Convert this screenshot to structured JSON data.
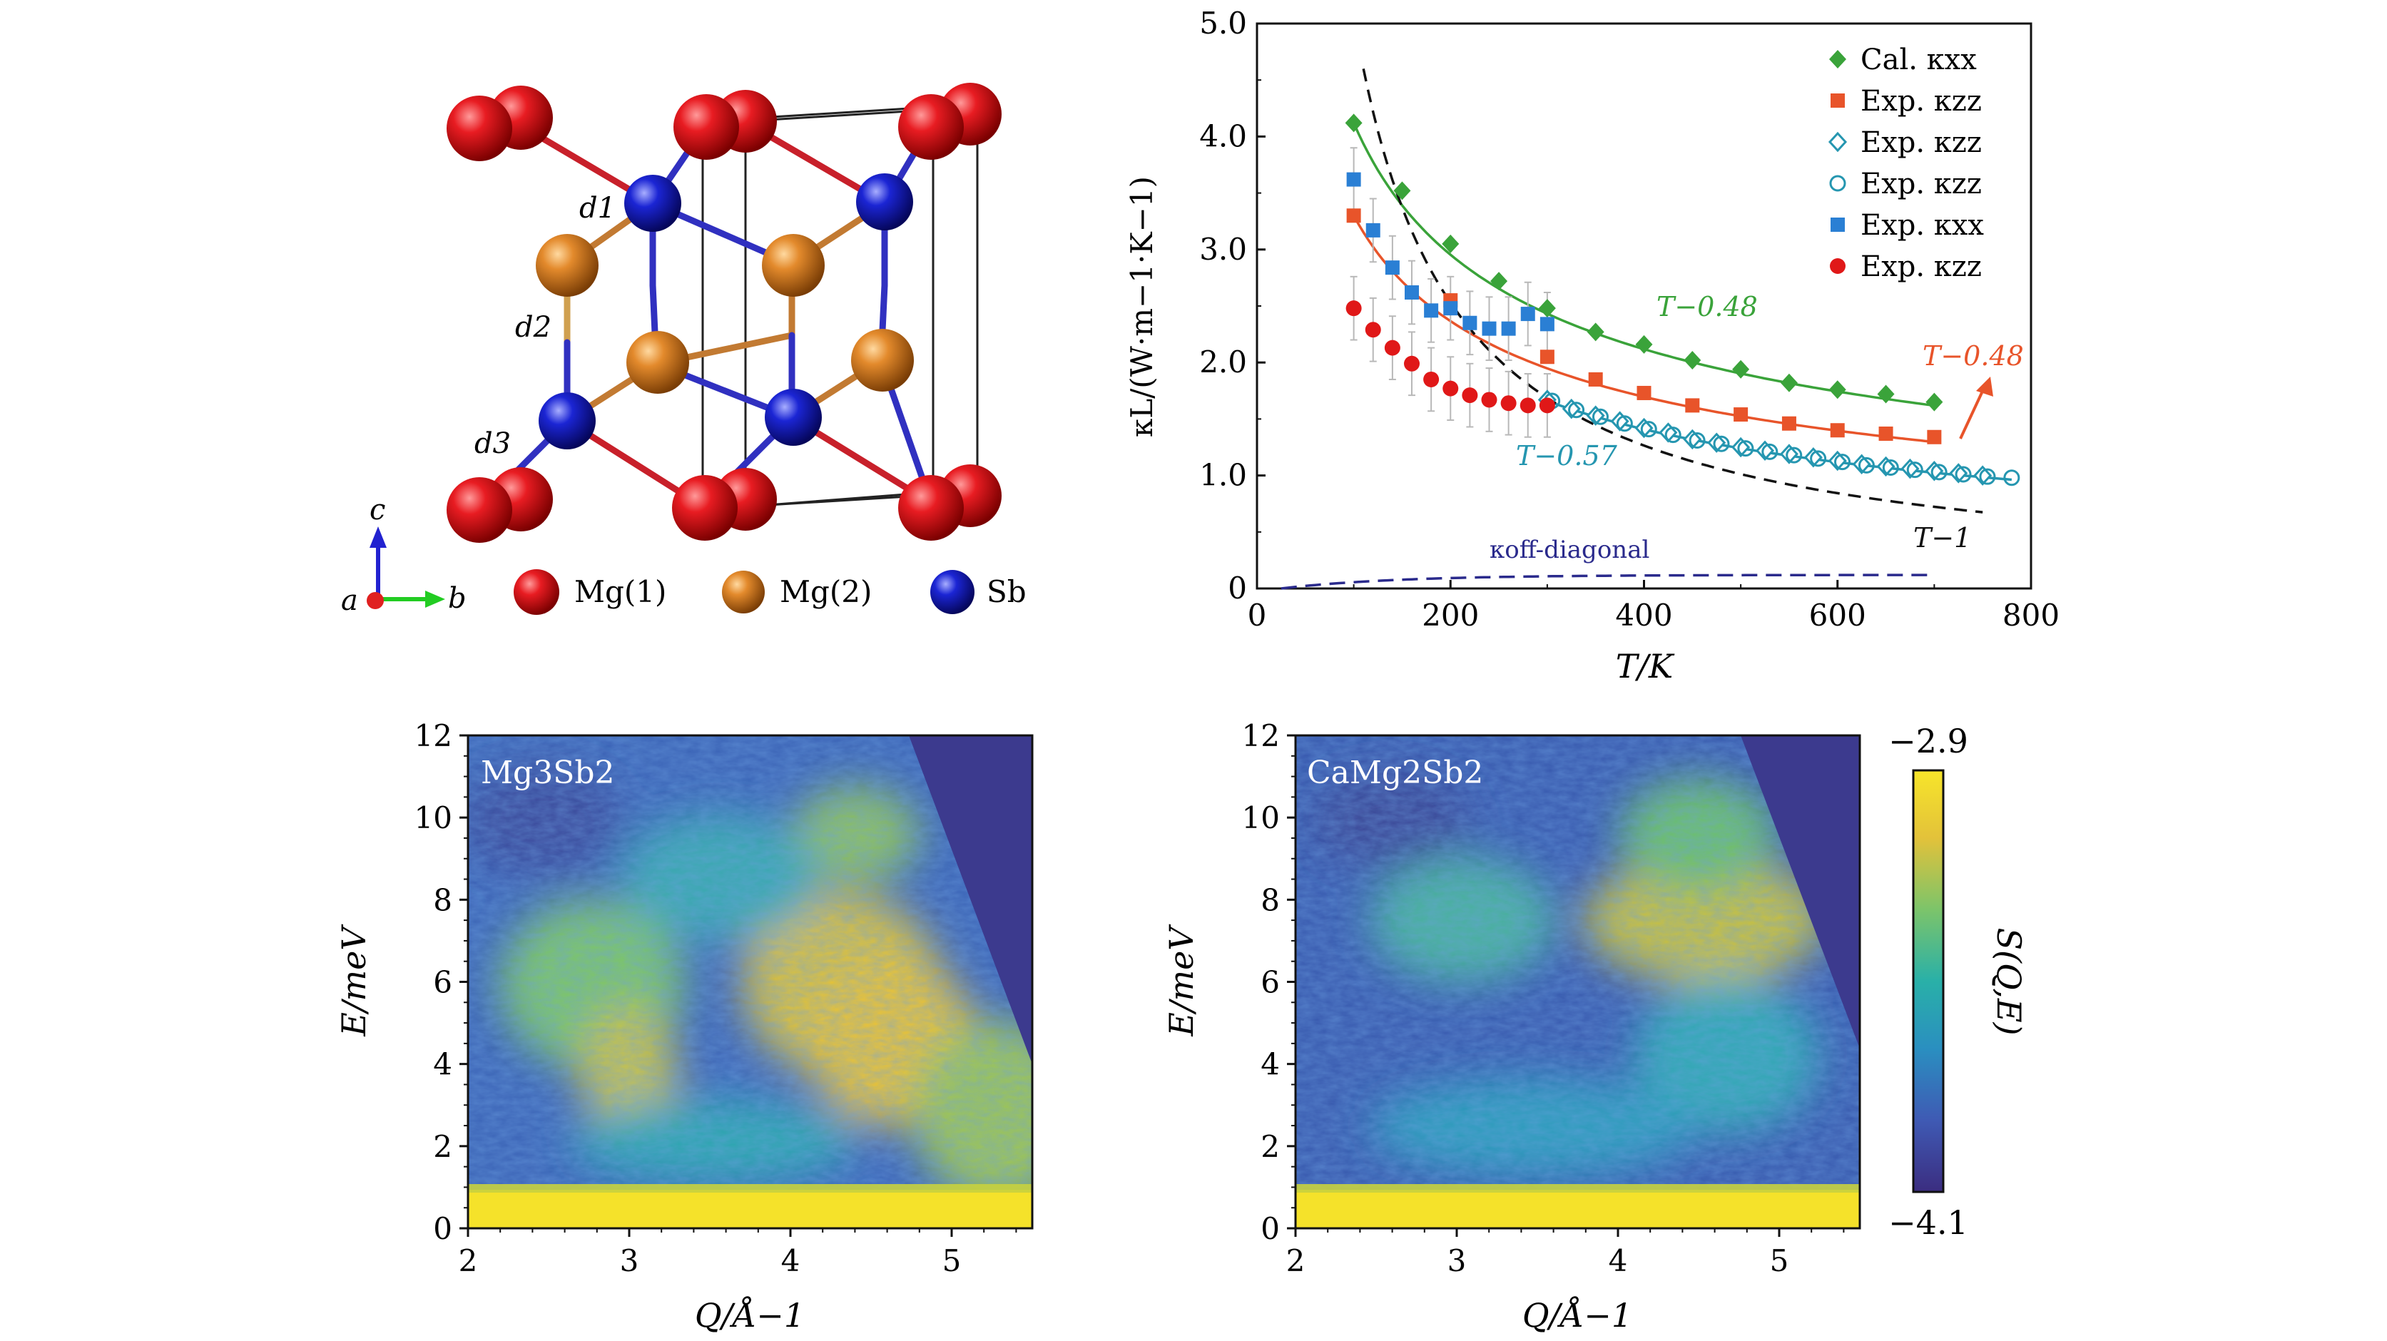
{
  "crystal": {
    "bond_labels": [
      "d1",
      "d2",
      "d3"
    ],
    "axes": {
      "c": "c",
      "a": "a",
      "b": "b"
    },
    "legend": [
      {
        "label": "Mg(1)",
        "color": "#e0141c"
      },
      {
        "label": "Mg(2)",
        "color": "#e8872a"
      },
      {
        "label": "Sb",
        "color": "#1a24d0"
      }
    ]
  },
  "colors": {
    "cal_green": "#3aa33a",
    "exp_orange": "#e8542a",
    "exp_cyan": "#2596b0",
    "exp_blue": "#2a7fd4",
    "exp_red": "#e01818",
    "black_fit": "#111111",
    "offdiag": "#2a2a8c"
  },
  "chart_data": [
    {
      "type": "scatter",
      "xlabel": "T/K",
      "ylabel": "κL/(W·m−1·K−1)",
      "xlim": [
        0,
        800
      ],
      "ylim": [
        0,
        5.0
      ],
      "xticks": [
        0,
        200,
        400,
        600,
        800
      ],
      "yticks": [
        0,
        1.0,
        2.0,
        3.0,
        4.0,
        5.0
      ],
      "ytick_labels": [
        "0",
        "1.0",
        "2.0",
        "3.0",
        "4.0",
        "5.0"
      ],
      "grid": false,
      "legend_position": "top-right",
      "series": [
        {
          "name": "Cal. κxx",
          "marker": "diamond-filled",
          "color": "#3aa33a",
          "x": [
            100,
            150,
            200,
            250,
            300,
            350,
            400,
            450,
            500,
            550,
            600,
            650,
            700
          ],
          "y": [
            4.12,
            3.52,
            3.05,
            2.72,
            2.48,
            2.27,
            2.16,
            2.02,
            1.94,
            1.82,
            1.76,
            1.72,
            1.65
          ]
        },
        {
          "name": "Exp. κzz",
          "marker": "square-filled",
          "color": "#e8542a",
          "x": [
            100,
            200,
            300,
            350,
            400,
            450,
            500,
            550,
            600,
            650,
            700
          ],
          "y": [
            3.3,
            2.55,
            2.05,
            1.85,
            1.73,
            1.62,
            1.54,
            1.46,
            1.4,
            1.37,
            1.34
          ]
        },
        {
          "name": "Exp. κzz",
          "marker": "diamond-open",
          "color": "#2596b0",
          "x": [
            300,
            325,
            350,
            375,
            400,
            425,
            450,
            475,
            500,
            525,
            550,
            575,
            600,
            625,
            650,
            675,
            700,
            725,
            750
          ],
          "y": [
            1.67,
            1.59,
            1.53,
            1.48,
            1.42,
            1.38,
            1.32,
            1.29,
            1.25,
            1.22,
            1.19,
            1.16,
            1.13,
            1.1,
            1.08,
            1.06,
            1.04,
            1.02,
            1.0
          ]
        },
        {
          "name": "Exp. κzz",
          "marker": "circle-open",
          "color": "#2596b0",
          "x": [
            305,
            330,
            355,
            380,
            405,
            430,
            455,
            480,
            505,
            530,
            555,
            580,
            605,
            630,
            655,
            680,
            705,
            730,
            755,
            780
          ],
          "y": [
            1.66,
            1.58,
            1.52,
            1.46,
            1.41,
            1.36,
            1.31,
            1.28,
            1.24,
            1.21,
            1.18,
            1.15,
            1.12,
            1.09,
            1.07,
            1.05,
            1.03,
            1.01,
            0.99,
            0.98
          ]
        },
        {
          "name": "Exp. κxx",
          "marker": "square-filled",
          "color": "#2a7fd4",
          "x": [
            100,
            120,
            140,
            160,
            180,
            200,
            220,
            240,
            260,
            280,
            300
          ],
          "y": [
            3.62,
            3.17,
            2.84,
            2.62,
            2.46,
            2.48,
            2.35,
            2.3,
            2.3,
            2.43,
            2.34
          ]
        },
        {
          "name": "Exp. κzz",
          "marker": "circle-filled",
          "color": "#e01818",
          "x": [
            100,
            120,
            140,
            160,
            180,
            200,
            220,
            240,
            260,
            280,
            300
          ],
          "y": [
            2.48,
            2.29,
            2.13,
            1.99,
            1.85,
            1.77,
            1.71,
            1.67,
            1.64,
            1.62,
            1.62
          ]
        }
      ],
      "fit_labels": [
        {
          "text": "T−0.48",
          "color": "#3aa33a"
        },
        {
          "text": "T−0.48",
          "color": "#e8542a"
        },
        {
          "text": "T−0.57",
          "color": "#2596b0"
        },
        {
          "text": "T−1",
          "color": "#111111"
        },
        {
          "text": "κoff-diagonal",
          "color": "#2a2a8c"
        }
      ]
    },
    {
      "type": "heatmap",
      "title": "Mg3Sb2",
      "xlabel": "Q/Å−1",
      "ylabel": "E/meV",
      "xlim": [
        2,
        5.5
      ],
      "ylim": [
        0,
        12
      ],
      "xticks": [
        2,
        3,
        4,
        5
      ],
      "yticks": [
        0,
        2,
        4,
        6,
        8,
        10,
        12
      ]
    },
    {
      "type": "heatmap",
      "title": "CaMg2Sb2",
      "xlabel": "Q/Å−1",
      "ylabel": "E/meV",
      "xlim": [
        2,
        5.5
      ],
      "ylim": [
        0,
        12
      ],
      "xticks": [
        2,
        3,
        4,
        5
      ],
      "yticks": [
        0,
        2,
        4,
        6,
        8,
        10,
        12
      ]
    }
  ],
  "colorbar": {
    "label": "S(Q,E)",
    "max_label": "−2.9",
    "min_label": "−4.1",
    "colors": [
      "#3b2d80",
      "#3f5ab4",
      "#2a8fc0",
      "#29b0a8",
      "#7cc46a",
      "#e3c23a",
      "#f7e52a"
    ]
  }
}
